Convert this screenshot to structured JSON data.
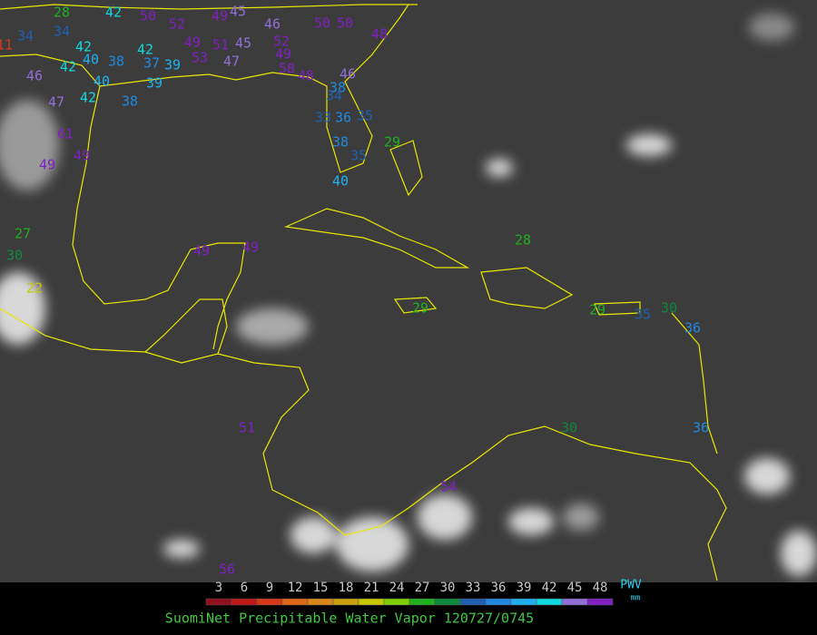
{
  "title": "SuomiNet Precipitable Water Vapor 120727/0745",
  "colorbar": {
    "ticks": [
      3,
      6,
      9,
      12,
      15,
      18,
      21,
      24,
      27,
      30,
      33,
      36,
      39,
      42,
      45,
      48
    ],
    "colors": [
      "#901020",
      "#c01818",
      "#d83818",
      "#e06818",
      "#d88818",
      "#c8a010",
      "#c8c800",
      "#80d000",
      "#20b020",
      "#108840",
      "#2060b0",
      "#2088e0",
      "#20b0f0",
      "#10d8e0",
      "#9070d8",
      "#8020c0"
    ],
    "unit_title": "PWV",
    "unit": "mm"
  },
  "stations": [
    28,
    42,
    49,
    45,
    52,
    50,
    46,
    50,
    50,
    48,
    34,
    34,
    42,
    40,
    38,
    37,
    39,
    42,
    49,
    51,
    45,
    52,
    49,
    47,
    53,
    58,
    48,
    46,
    38,
    34,
    36,
    35,
    33,
    38,
    35,
    40,
    29,
    46,
    42,
    42,
    47,
    38,
    39,
    40,
    61,
    49,
    49,
    27,
    30,
    22,
    49,
    49,
    28,
    29,
    29,
    35,
    30,
    36,
    36,
    30,
    51,
    54,
    56,
    11
  ]
}
